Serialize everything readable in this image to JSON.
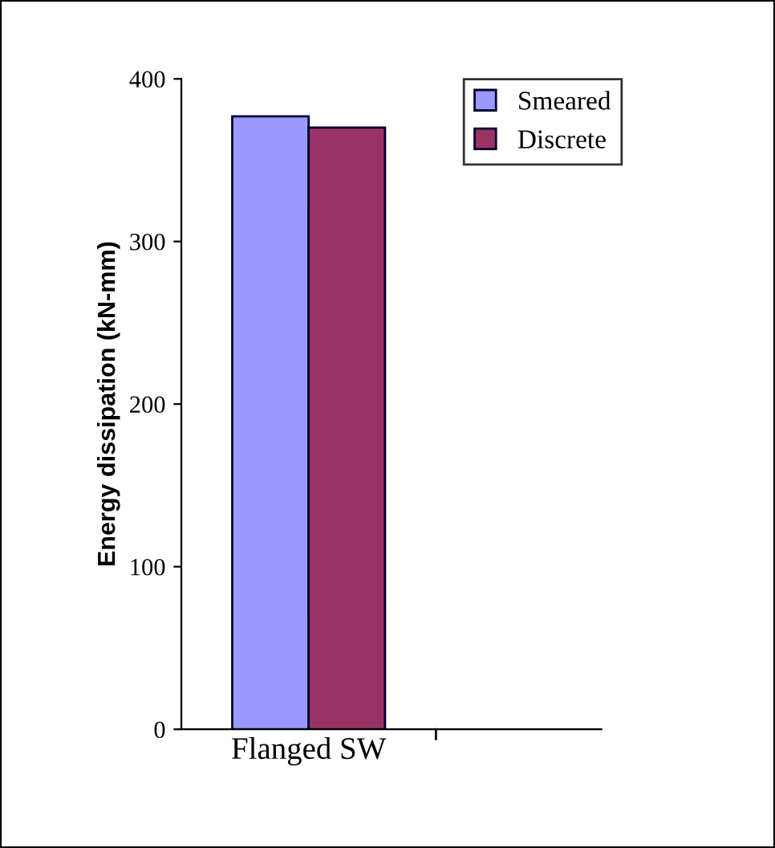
{
  "chart_data": {
    "type": "bar",
    "ylabel": "Energy dissipation (kN-mm)",
    "categories": [
      "Flanged SW"
    ],
    "series": [
      {
        "name": "Smeared",
        "color": "#9999ff",
        "values": [
          377
        ]
      },
      {
        "name": "Discrete",
        "color": "#993366",
        "values": [
          370
        ]
      }
    ],
    "ylim": [
      0,
      400
    ],
    "yticks": [
      0,
      100,
      200,
      300,
      400
    ],
    "grid": false,
    "legend": "top right"
  }
}
